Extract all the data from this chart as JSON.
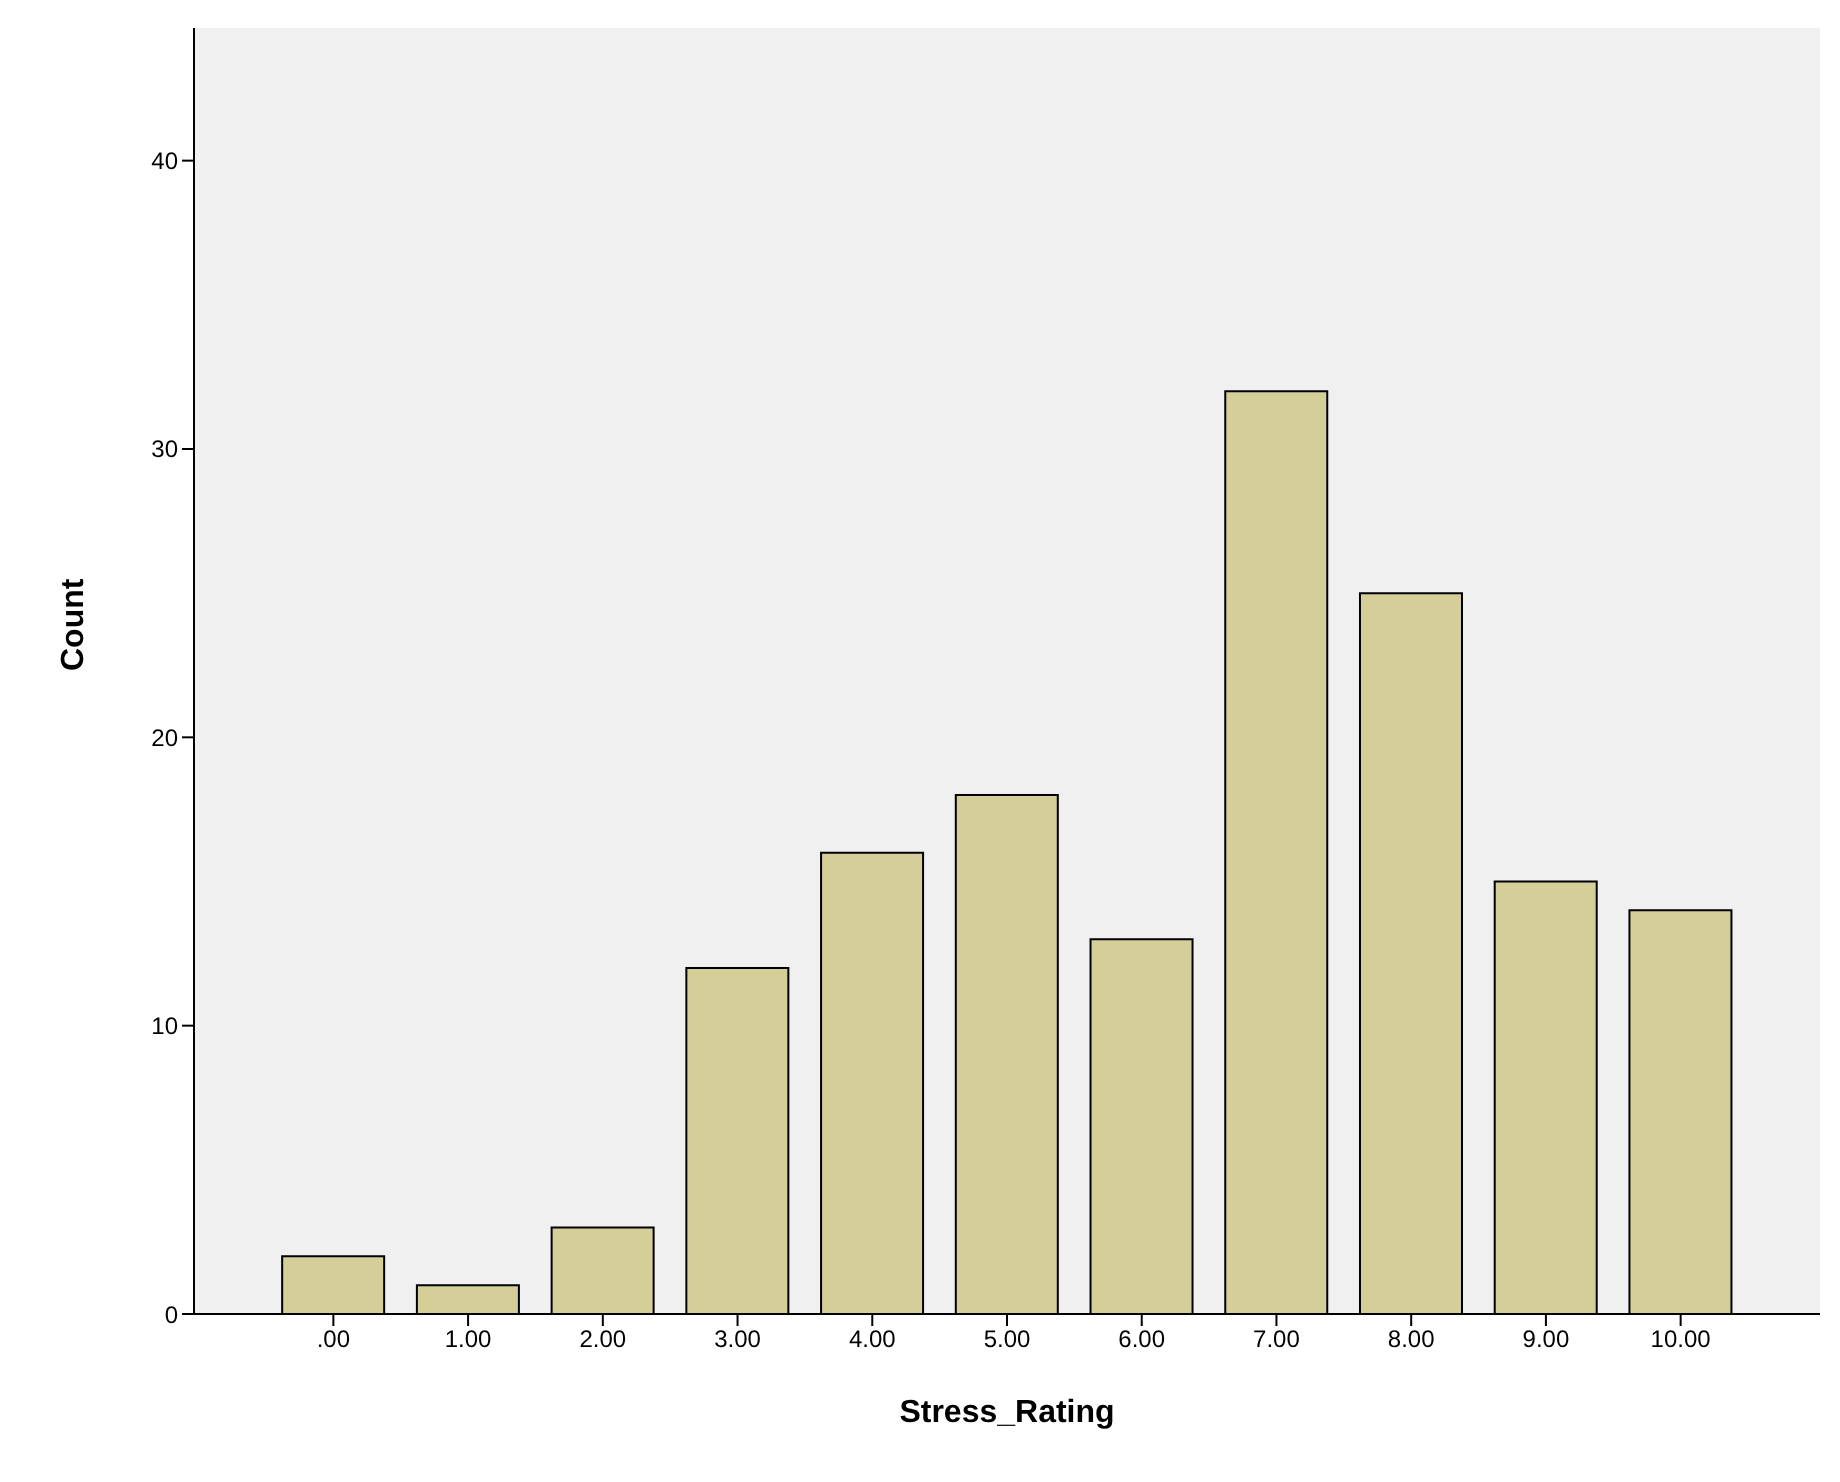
{
  "chart_data": {
    "type": "bar",
    "xlabel": "Stress_Rating",
    "ylabel": "Count",
    "categories": [
      ".00",
      "1.00",
      "2.00",
      "3.00",
      "4.00",
      "5.00",
      "6.00",
      "7.00",
      "8.00",
      "9.00",
      "10.00"
    ],
    "values": [
      2,
      1,
      3,
      12,
      16,
      18,
      13,
      32,
      25,
      15,
      14
    ],
    "color": "#d4cf99",
    "ylim": [
      0,
      44.6
    ],
    "yticks": [
      0,
      10,
      20,
      30,
      40
    ],
    "grid": false,
    "legend": false
  }
}
